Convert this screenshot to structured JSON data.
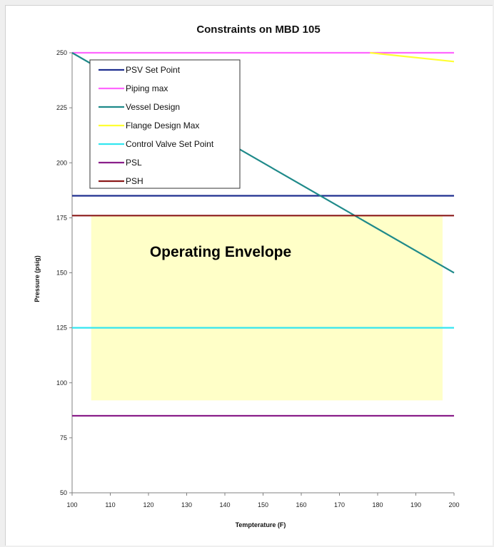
{
  "chart_data": {
    "type": "line",
    "title": "Constraints on MBD 105",
    "xlabel": "Tempterature (F)",
    "ylabel": "Pressure (psig)",
    "xlim": [
      100,
      200
    ],
    "ylim": [
      50,
      250
    ],
    "x_ticks": [
      "100",
      "110",
      "120",
      "130",
      "140",
      "150",
      "160",
      "170",
      "180",
      "190",
      "200"
    ],
    "y_ticks": [
      "50",
      "75",
      "100",
      "125",
      "150",
      "175",
      "200",
      "225",
      "250"
    ],
    "grid": false,
    "legend_position": "top-left",
    "series": [
      {
        "name": "PSV Set Point",
        "color": "#1f2f8f",
        "points": [
          [
            100,
            185
          ],
          [
            200,
            185
          ]
        ]
      },
      {
        "name": "Piping max",
        "color": "#ff66ff",
        "points": [
          [
            100,
            250
          ],
          [
            200,
            250
          ]
        ]
      },
      {
        "name": "Vessel Design",
        "color": "#1f8a8a",
        "points": [
          [
            100,
            250
          ],
          [
            200,
            150
          ]
        ]
      },
      {
        "name": "Flange Design Max",
        "color": "#ffff33",
        "points": [
          [
            178,
            250
          ],
          [
            200,
            246
          ]
        ]
      },
      {
        "name": "Control Valve Set Point",
        "color": "#33e6f0",
        "points": [
          [
            100,
            125
          ],
          [
            200,
            125
          ]
        ]
      },
      {
        "name": "PSL",
        "color": "#8a1f8a",
        "points": [
          [
            100,
            85
          ],
          [
            200,
            85
          ]
        ]
      },
      {
        "name": "PSH",
        "color": "#8b1a1a",
        "points": [
          [
            100,
            176
          ],
          [
            200,
            176
          ]
        ]
      }
    ],
    "regions": [
      {
        "label": "Operating Envelope",
        "color": "#ffffc8",
        "x": [
          105,
          197
        ],
        "y": [
          92,
          176
        ]
      }
    ]
  }
}
